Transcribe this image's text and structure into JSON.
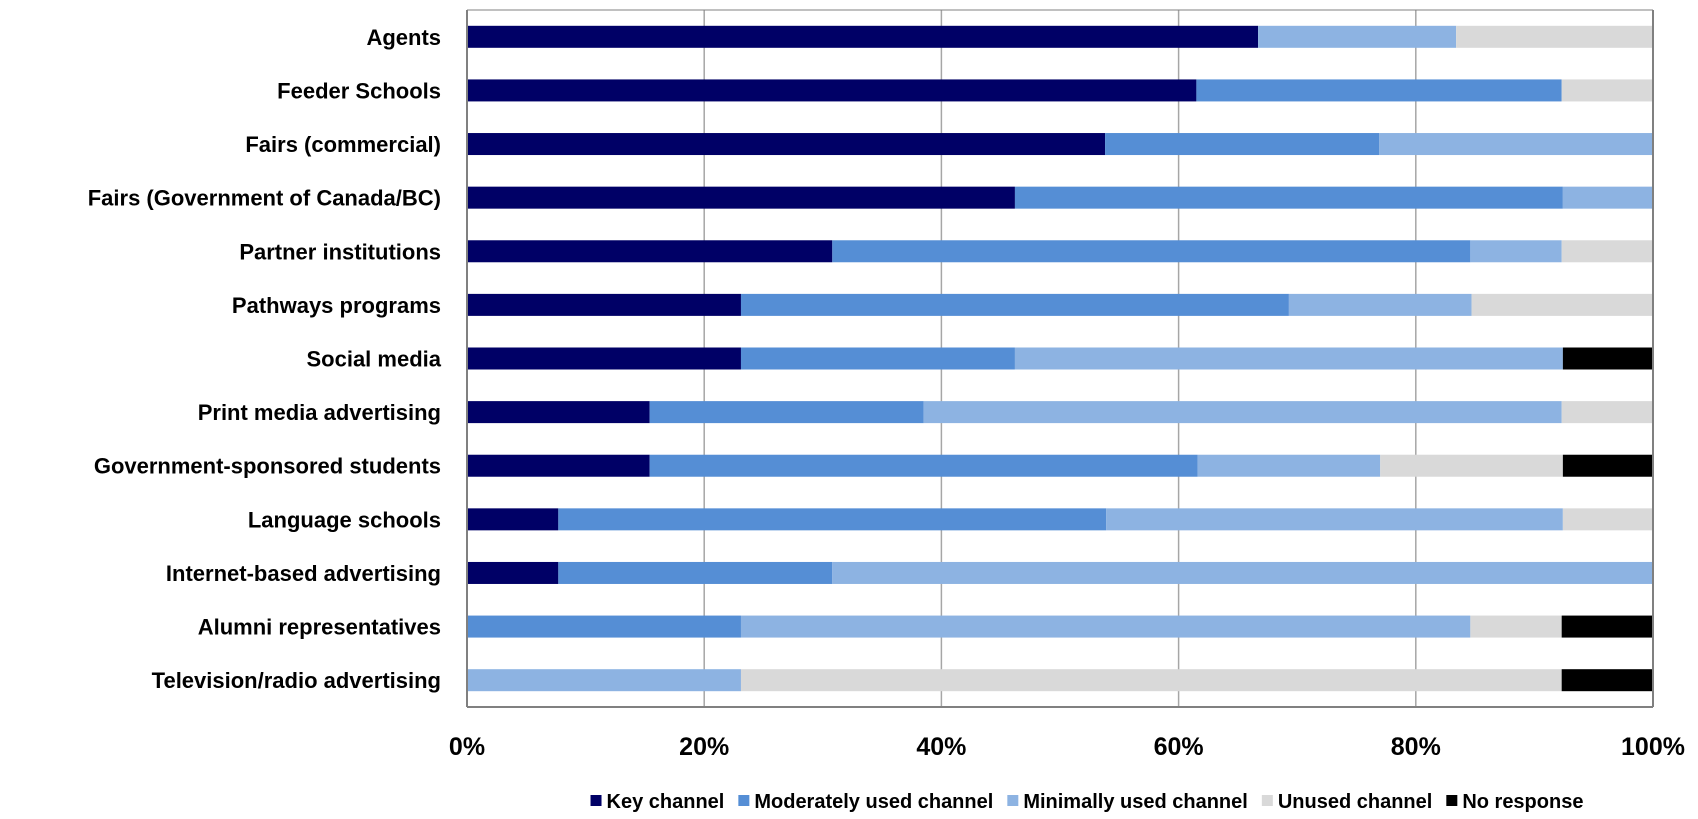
{
  "chart_data": {
    "type": "bar",
    "orientation": "horizontal",
    "stacked": true,
    "percent_stacked": true,
    "title": "",
    "xlabel": "",
    "ylabel": "",
    "xlim": [
      0,
      100
    ],
    "x_ticks": [
      "0%",
      "20%",
      "40%",
      "60%",
      "80%",
      "100%"
    ],
    "grid": true,
    "legend_position": "bottom",
    "categories": [
      "Agents",
      "Feeder Schools",
      "Fairs (commercial)",
      "Fairs (Government of Canada/BC)",
      "Partner institutions",
      "Pathways programs",
      "Social media",
      "Print media advertising",
      "Government-sponsored students",
      "Language schools",
      "Internet-based advertising",
      "Alumni representatives",
      "Television/radio advertising"
    ],
    "series": [
      {
        "name": "Key channel",
        "color": "#000066",
        "values": [
          66.7,
          61.5,
          53.8,
          46.2,
          30.8,
          23.1,
          23.1,
          15.4,
          15.4,
          7.7,
          7.7,
          0,
          0
        ]
      },
      {
        "name": "Moderately used channel",
        "color": "#558ED5",
        "values": [
          0,
          30.8,
          23.1,
          46.2,
          53.8,
          46.2,
          23.1,
          23.1,
          46.2,
          46.2,
          23.1,
          23.1,
          0
        ]
      },
      {
        "name": "Minimally used channel",
        "color": "#8DB3E2",
        "values": [
          16.7,
          0,
          23.1,
          7.7,
          7.7,
          15.4,
          46.2,
          53.8,
          15.4,
          38.5,
          69.2,
          61.5,
          23.1
        ]
      },
      {
        "name": "Unused channel",
        "color": "#D9D9D9",
        "values": [
          16.7,
          7.7,
          0,
          0,
          7.7,
          15.4,
          0,
          7.7,
          15.4,
          7.7,
          0,
          7.7,
          69.2
        ]
      },
      {
        "name": "No response",
        "color": "#000000",
        "values": [
          0,
          0,
          0,
          0,
          0,
          0,
          7.7,
          0,
          7.7,
          0,
          0,
          7.7,
          7.7
        ]
      }
    ]
  }
}
